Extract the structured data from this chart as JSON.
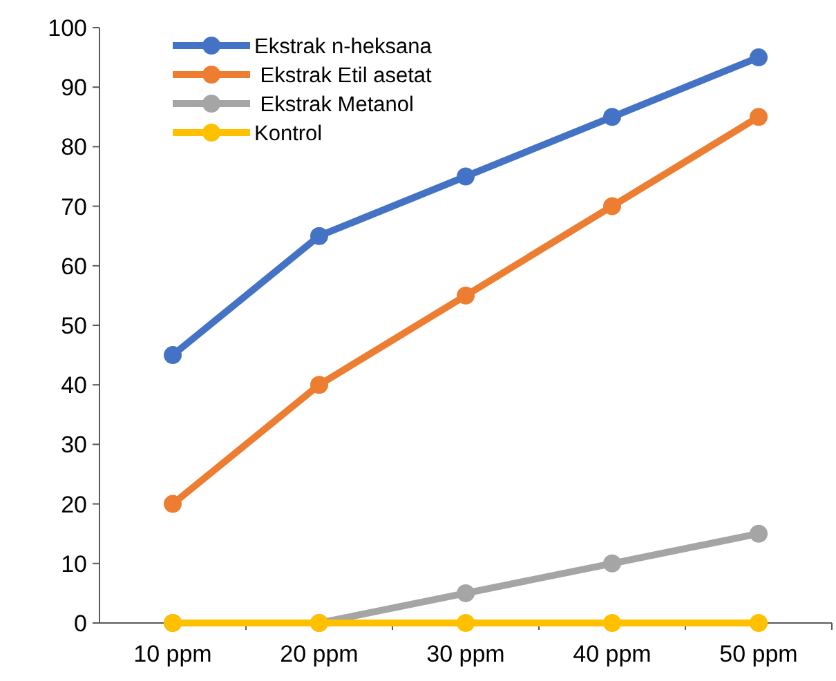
{
  "chart_data": {
    "type": "line",
    "categories": [
      "10 ppm",
      "20 ppm",
      "30 ppm",
      "40 ppm",
      "50 ppm"
    ],
    "series": [
      {
        "name": "Ekstrak n-heksana",
        "color": "#4472c4",
        "values": [
          45,
          65,
          75,
          85,
          95
        ]
      },
      {
        "name": " Ekstrak Etil asetat",
        "color": "#ed7d31",
        "values": [
          20,
          40,
          55,
          70,
          85
        ]
      },
      {
        "name": " Ekstrak Metanol",
        "color": "#a5a5a5",
        "values": [
          0,
          0,
          5,
          10,
          15
        ]
      },
      {
        "name": "Kontrol",
        "color": "#ffc000",
        "values": [
          0,
          0,
          0,
          0,
          0
        ]
      }
    ],
    "ylim": [
      0,
      100
    ],
    "yticks": [
      0,
      10,
      20,
      30,
      40,
      50,
      60,
      70,
      80,
      90,
      100
    ],
    "grid": false,
    "legend": "top left",
    "marker": "circle",
    "line_style": "solid"
  }
}
